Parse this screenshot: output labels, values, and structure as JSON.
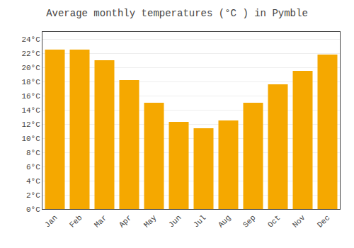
{
  "chart_data": {
    "type": "bar",
    "title": "Average monthly temperatures (°C ) in Pymble",
    "categories": [
      "Jan",
      "Feb",
      "Mar",
      "Apr",
      "May",
      "Jun",
      "Jul",
      "Aug",
      "Sep",
      "Oct",
      "Nov",
      "Dec"
    ],
    "values": [
      22.5,
      22.5,
      21.0,
      18.2,
      15.0,
      12.3,
      11.4,
      12.5,
      15.0,
      17.6,
      19.5,
      21.8
    ],
    "color": "#F5A800",
    "ylim": [
      0,
      25
    ],
    "yticks": [
      {
        "value": 0,
        "label": "0°C"
      },
      {
        "value": 2,
        "label": "2°C"
      },
      {
        "value": 4,
        "label": "4°C"
      },
      {
        "value": 6,
        "label": "6°C"
      },
      {
        "value": 8,
        "label": "8°C"
      },
      {
        "value": 10,
        "label": "10°C"
      },
      {
        "value": 12,
        "label": "12°C"
      },
      {
        "value": 14,
        "label": "14°C"
      },
      {
        "value": 16,
        "label": "16°C"
      },
      {
        "value": 18,
        "label": "18°C"
      },
      {
        "value": 20,
        "label": "20°C"
      },
      {
        "value": 22,
        "label": "22°C"
      },
      {
        "value": 24,
        "label": "24°C"
      }
    ],
    "grid": true
  }
}
